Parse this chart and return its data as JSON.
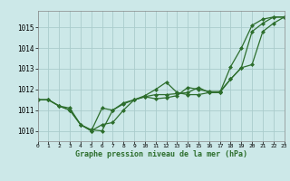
{
  "background_color": "#cce8e8",
  "grid_color": "#aacccc",
  "line_color": "#2d6e2d",
  "xlabel": "Graphe pression niveau de la mer (hPa)",
  "xlim": [
    0,
    23
  ],
  "ylim": [
    1009.5,
    1015.8
  ],
  "yticks": [
    1010,
    1011,
    1012,
    1013,
    1014,
    1015
  ],
  "xticks": [
    0,
    1,
    2,
    3,
    4,
    5,
    6,
    7,
    8,
    9,
    10,
    11,
    12,
    13,
    14,
    15,
    16,
    17,
    18,
    19,
    20,
    21,
    22,
    23
  ],
  "series": [
    {
      "x": [
        0,
        1,
        2,
        3,
        4,
        5,
        6,
        7,
        8,
        9,
        10,
        11,
        12,
        13,
        14,
        15,
        16,
        17,
        18,
        19,
        20,
        21,
        22,
        23
      ],
      "y": [
        1011.5,
        1011.5,
        1011.2,
        1011.0,
        1010.3,
        1010.05,
        1010.0,
        1011.0,
        1011.3,
        1011.5,
        1011.65,
        1011.75,
        1011.75,
        1011.8,
        1011.85,
        1012.1,
        1011.85,
        1011.85,
        1013.1,
        1014.0,
        1015.1,
        1015.4,
        1015.5,
        1015.5
      ]
    },
    {
      "x": [
        0,
        1,
        2,
        3,
        4,
        5,
        6,
        7,
        8,
        9,
        10,
        11,
        12,
        13,
        14,
        15,
        16,
        17,
        18,
        19,
        20,
        21,
        22,
        23
      ],
      "y": [
        1011.5,
        1011.5,
        1011.2,
        1011.1,
        1010.3,
        1010.0,
        1010.3,
        1010.4,
        1011.0,
        1011.5,
        1011.7,
        1012.0,
        1012.35,
        1011.85,
        1011.75,
        1011.75,
        1011.85,
        1011.85,
        1012.5,
        1013.05,
        1014.8,
        1015.2,
        1015.5,
        1015.5
      ]
    },
    {
      "x": [
        0,
        1,
        2,
        3,
        4,
        5,
        6,
        7,
        8,
        9,
        10,
        11,
        12,
        13,
        14,
        15,
        16,
        17,
        18,
        19,
        20,
        21,
        22,
        23
      ],
      "y": [
        1011.5,
        1011.5,
        1011.2,
        1011.0,
        1010.3,
        1010.0,
        1011.1,
        1011.0,
        1011.35,
        1011.5,
        1011.65,
        1011.55,
        1011.6,
        1011.7,
        1012.1,
        1012.0,
        1011.9,
        1011.9,
        1012.5,
        1013.05,
        1013.2,
        1014.8,
        1015.2,
        1015.5
      ]
    }
  ]
}
